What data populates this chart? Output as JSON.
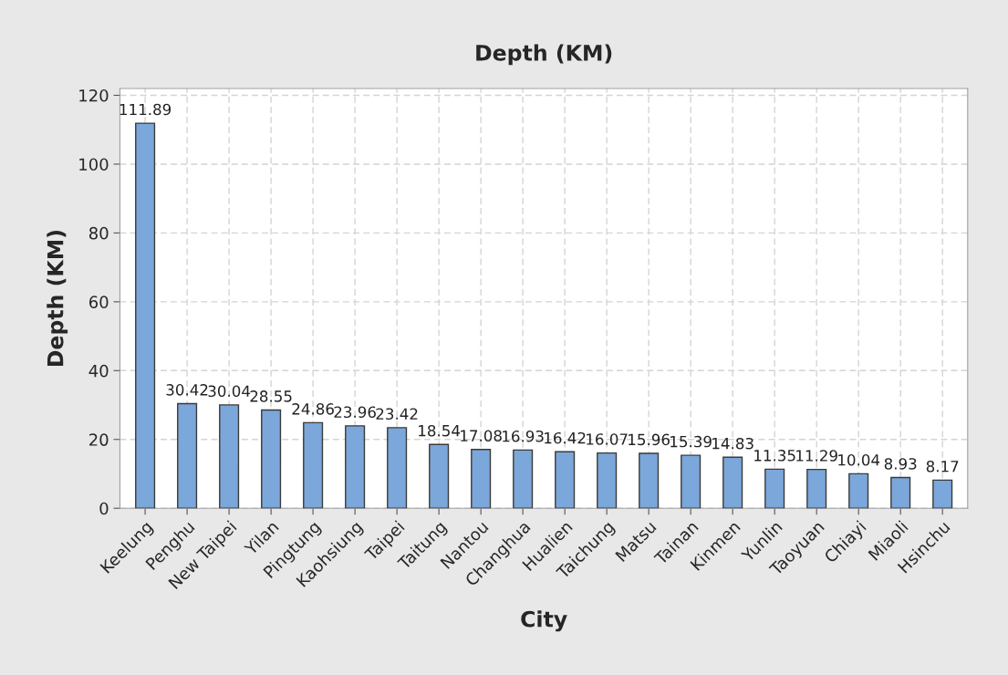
{
  "chart_data": {
    "type": "bar",
    "title": "Depth (KM)",
    "xlabel": "City",
    "ylabel": "Depth (KM)",
    "categories": [
      "Keelung",
      "Penghu",
      "New Taipei",
      "Yilan",
      "Pingtung",
      "Kaohsiung",
      "Taipei",
      "Taitung",
      "Nantou",
      "Changhua",
      "Hualien",
      "Taichung",
      "Matsu",
      "Tainan",
      "Kinmen",
      "Yunlin",
      "Taoyuan",
      "Chiayi",
      "Miaoli",
      "Hsinchu"
    ],
    "values": [
      111.89,
      30.42,
      30.04,
      28.55,
      24.86,
      23.96,
      23.42,
      18.54,
      17.08,
      16.93,
      16.42,
      16.07,
      15.96,
      15.39,
      14.83,
      11.35,
      11.29,
      10.04,
      8.93,
      8.17
    ],
    "color": "#7ba7da",
    "ylim": [
      0,
      122
    ],
    "yticks": [
      0,
      20,
      40,
      60,
      80,
      100,
      120
    ],
    "grid": true,
    "data_labels": true
  }
}
